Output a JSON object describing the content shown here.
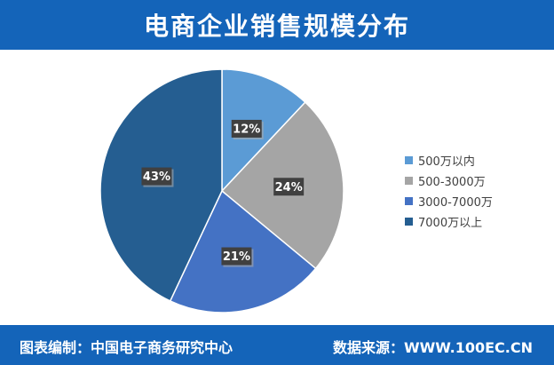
{
  "header": {
    "title": "电商企业销售规模分布"
  },
  "chart_data": {
    "type": "pie",
    "categories": [
      "500万以内",
      "500-3000万",
      "3000-7000万",
      "7000万以上"
    ],
    "values": [
      12,
      24,
      21,
      43
    ],
    "labels": [
      "12%",
      "24%",
      "21%",
      "43%"
    ],
    "colors": [
      "#5b9bd5",
      "#a5a5a5",
      "#4472c4",
      "#255e91"
    ],
    "legend_position": "right"
  },
  "footer": {
    "source_prefix": "图表编制：",
    "source_org": "中国电子商务研究中心",
    "data_prefix": "数据来源：",
    "data_site": "WWW.100EC.CN"
  }
}
